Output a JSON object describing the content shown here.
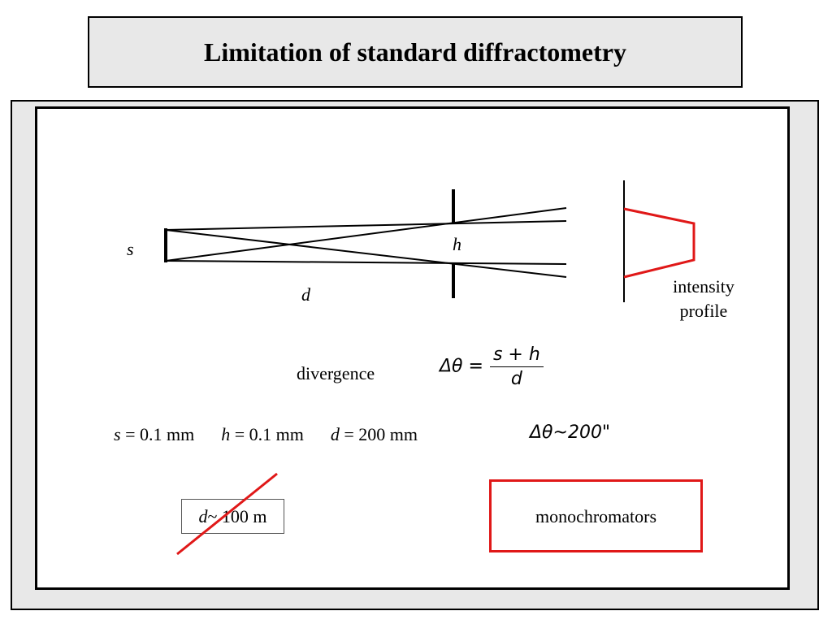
{
  "title": "Limitation of standard diffractometry",
  "diagram": {
    "label_s": "s",
    "label_h": "h",
    "label_d": "d",
    "intensity_label": [
      "intensity",
      "profile"
    ]
  },
  "divergence": {
    "label": "divergence",
    "formula_lhs": "Δθ =",
    "formula_num": "s + h",
    "formula_den": "d"
  },
  "parameters": {
    "s_var": "s",
    "s_val": " = 0.1 mm",
    "h_var": "h",
    "h_val": " = 0.1 mm",
    "d_var": "d",
    "d_val": " = 200 mm"
  },
  "result": "Δθ~200\"",
  "crossed_out": {
    "var": "d",
    "text": " ~ 100 m"
  },
  "monochromators": "monochromators",
  "colors": {
    "accent_red": "#e01818",
    "panel_gray": "#e8e8e8"
  }
}
